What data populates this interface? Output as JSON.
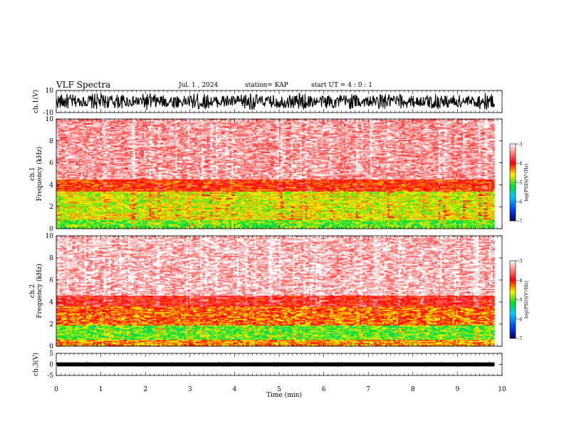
{
  "header": {
    "title": "VLF Spectra",
    "date": "Jul. 1 , 2024",
    "station": "station= KAP",
    "start_ut": "start UT =  4 : 0  : 1"
  },
  "chart_data": [
    {
      "type": "line",
      "name": "ch1-waveform",
      "ylabel": "ch.1(V)",
      "ylim": [
        -10,
        10
      ],
      "y_ticks": [
        10,
        -10
      ],
      "xlim": [
        0,
        10
      ],
      "data_end_min": 9.83,
      "amplitude_range": [
        -8,
        8
      ],
      "color": "#000000"
    },
    {
      "type": "heatmap",
      "name": "ch1-spectrogram",
      "ylabel": "ch.1\nFrequency (kHz)",
      "ylim": [
        0,
        10
      ],
      "y_ticks": [
        0,
        2,
        4,
        6,
        8,
        10
      ],
      "xlim": [
        0,
        10
      ],
      "data_end_min": 9.83,
      "bands": [
        {
          "from_khz": 0.0,
          "to_khz": 0.8,
          "log_psd": -5.0
        },
        {
          "from_khz": 0.8,
          "to_khz": 1.3,
          "log_psd": -4.6
        },
        {
          "from_khz": 1.3,
          "to_khz": 3.4,
          "log_psd": -4.7
        },
        {
          "from_khz": 3.4,
          "to_khz": 4.5,
          "log_psd": -4.1
        },
        {
          "from_khz": 4.5,
          "to_khz": 10.0,
          "log_psd": -3.4
        }
      ],
      "colorbar": {
        "label": "log(PSD)(V²/Hz)",
        "range": [
          -7,
          -3
        ],
        "ticks": [
          -3,
          -4,
          -5,
          -6,
          -7
        ]
      }
    },
    {
      "type": "heatmap",
      "name": "ch2-spectrogram",
      "ylabel": "ch.2\nFrequency (kHz)",
      "ylim": [
        0,
        10
      ],
      "y_ticks": [
        0,
        2,
        4,
        6,
        8,
        10
      ],
      "xlim": [
        0,
        10
      ],
      "data_end_min": 9.83,
      "bands": [
        {
          "from_khz": 0.0,
          "to_khz": 0.6,
          "log_psd": -4.4
        },
        {
          "from_khz": 0.6,
          "to_khz": 1.9,
          "log_psd": -5.0
        },
        {
          "from_khz": 1.9,
          "to_khz": 3.6,
          "log_psd": -4.3
        },
        {
          "from_khz": 3.6,
          "to_khz": 4.6,
          "log_psd": -3.9
        },
        {
          "from_khz": 4.6,
          "to_khz": 10.0,
          "log_psd": -3.3
        }
      ],
      "colorbar": {
        "label": "log(PSD)(V²/Hz)",
        "range": [
          -7,
          -3
        ],
        "ticks": [
          -3,
          -4,
          -5,
          -6,
          -7
        ]
      }
    },
    {
      "type": "line",
      "name": "ch3-waveform",
      "ylabel": "ch.3(V)",
      "ylim": [
        -5,
        5
      ],
      "y_ticks": [
        5,
        0,
        -5
      ],
      "xlim": [
        0,
        10
      ],
      "data_end_min": 9.83,
      "amplitude_range": [
        -0.5,
        0.5
      ],
      "color": "#000000"
    }
  ],
  "x_axis": {
    "label": "Time (min)",
    "range": [
      0,
      10
    ],
    "ticks": [
      0,
      1,
      2,
      3,
      4,
      5,
      6,
      7,
      8,
      9,
      10
    ]
  },
  "colors": {
    "lowest": "#000080",
    "low": "#0066ff",
    "mid": "#00cc33",
    "mid_high": "#ffee00",
    "high": "#ff0000",
    "highest": "#ffffff"
  }
}
